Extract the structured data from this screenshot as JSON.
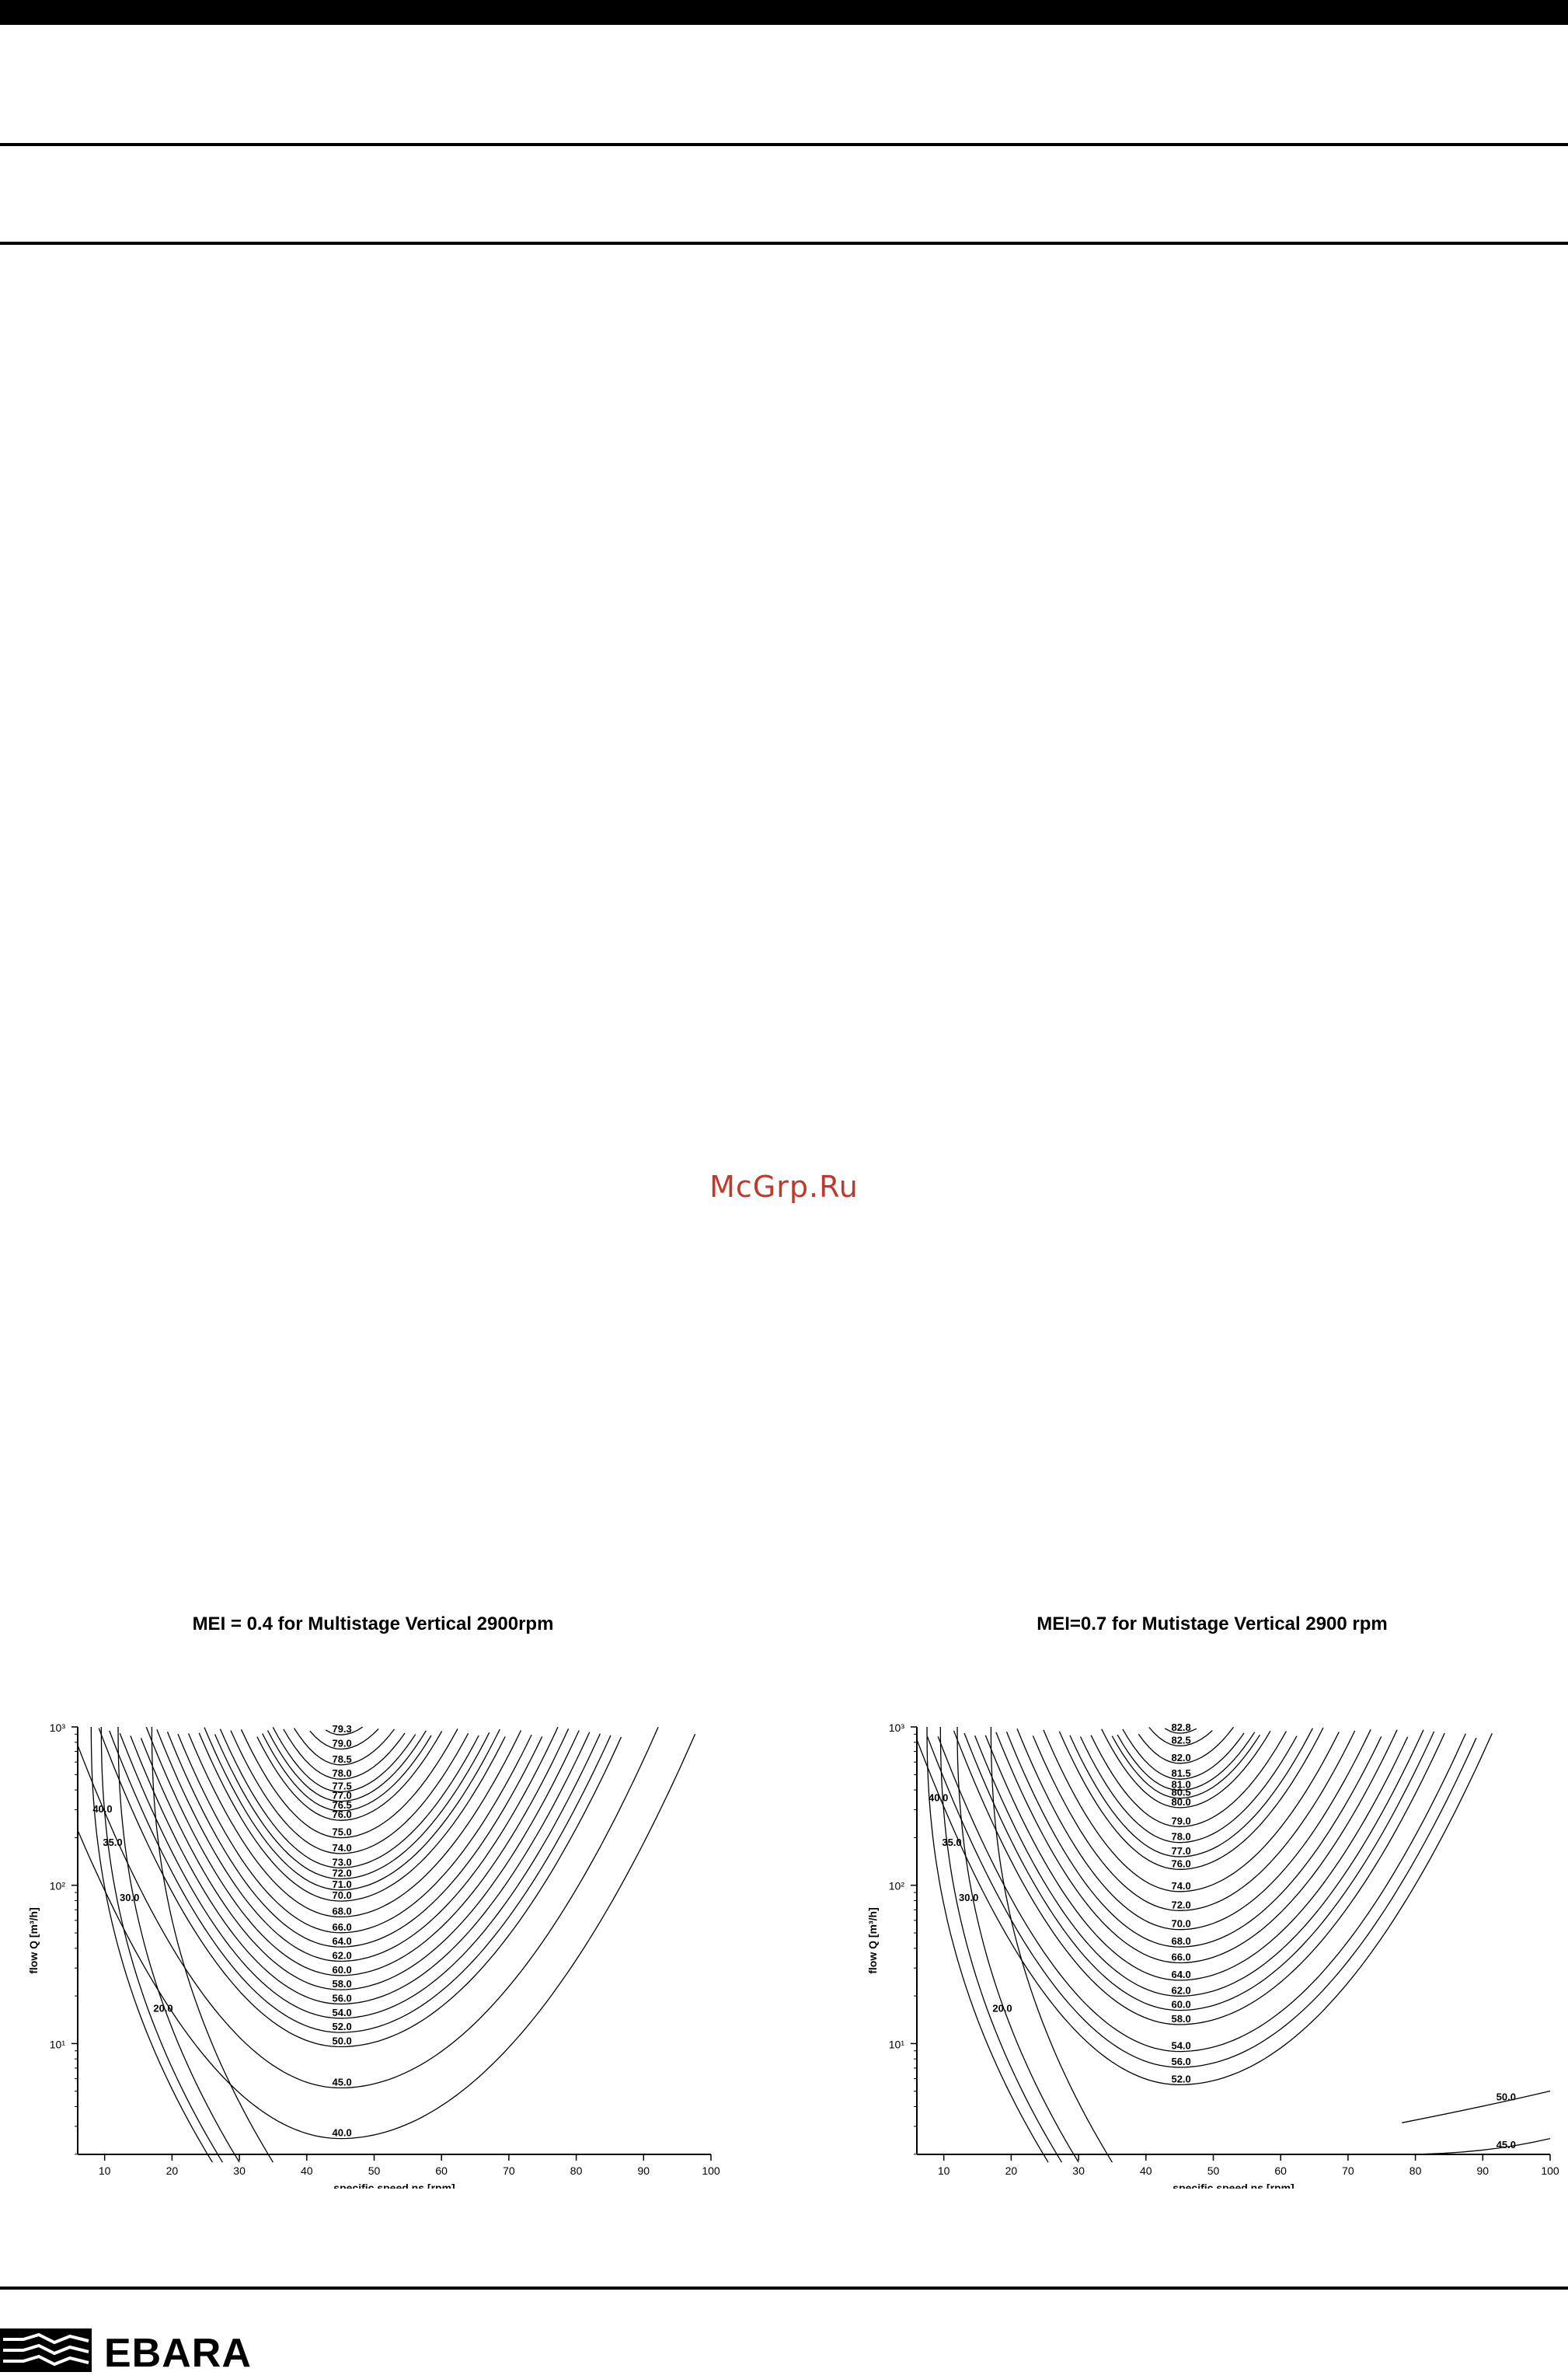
{
  "watermark": "McGrp.Ru",
  "brand": {
    "logo_text": "EBARA"
  },
  "chart_data": [
    {
      "type": "contour",
      "title": "MEI = 0.4 for Multistage Vertical 2900rpm",
      "xlabel": "specific speed ns [rpm]",
      "ylabel": "flow Q [m³/h]",
      "x_ticks": [
        10,
        20,
        30,
        40,
        50,
        60,
        70,
        80,
        90,
        100
      ],
      "y_ticks": [
        "10¹",
        "10²",
        "10³"
      ],
      "y_scale": "log",
      "xlim": [
        6,
        100
      ],
      "ylim_log10": [
        0.3,
        3.0
      ],
      "optimum_ns": 45,
      "levels": [
        {
          "value": "79.3",
          "logQ": 2.95
        },
        {
          "value": "79.0",
          "logQ": 2.86
        },
        {
          "value": "78.5",
          "logQ": 2.76
        },
        {
          "value": "78.0",
          "logQ": 2.67
        },
        {
          "value": "77.5",
          "logQ": 2.59
        },
        {
          "value": "77.0",
          "logQ": 2.53
        },
        {
          "value": "76.5",
          "logQ": 2.47
        },
        {
          "value": "76.0",
          "logQ": 2.41
        },
        {
          "value": "75.0",
          "logQ": 2.3
        },
        {
          "value": "74.0",
          "logQ": 2.2
        },
        {
          "value": "73.0",
          "logQ": 2.11
        },
        {
          "value": "72.0",
          "logQ": 2.04
        },
        {
          "value": "71.0",
          "logQ": 1.97
        },
        {
          "value": "70.0",
          "logQ": 1.9
        },
        {
          "value": "68.0",
          "logQ": 1.8
        },
        {
          "value": "66.0",
          "logQ": 1.7
        },
        {
          "value": "64.0",
          "logQ": 1.61
        },
        {
          "value": "62.0",
          "logQ": 1.52
        },
        {
          "value": "60.0",
          "logQ": 1.43
        },
        {
          "value": "58.0",
          "logQ": 1.34
        },
        {
          "value": "56.0",
          "logQ": 1.25
        },
        {
          "value": "54.0",
          "logQ": 1.16
        },
        {
          "value": "52.0",
          "logQ": 1.07
        },
        {
          "value": "50.0",
          "logQ": 0.98
        },
        {
          "value": "45.0",
          "logQ": 0.72
        },
        {
          "value": "40.0",
          "logQ": 0.4
        },
        {
          "value": "40.0",
          "logQ": 3.05,
          "side": "left",
          "ns": 8
        },
        {
          "value": "35.0",
          "logQ": 3.05,
          "side": "left",
          "ns": 9.5
        },
        {
          "value": "30.0",
          "logQ": 3.05,
          "side": "left",
          "ns": 12
        },
        {
          "value": "20.0",
          "logQ": 3.05,
          "side": "left",
          "ns": 17
        }
      ]
    },
    {
      "type": "contour",
      "title": "MEI=0.7 for Mutistage Vertical 2900 rpm",
      "xlabel": "specific speed ns [rpm]",
      "ylabel": "flow Q [m³/h]",
      "x_ticks": [
        10,
        20,
        30,
        40,
        50,
        60,
        70,
        80,
        90,
        100
      ],
      "y_ticks": [
        "10¹",
        "10²",
        "10³"
      ],
      "y_scale": "log",
      "xlim": [
        6,
        100
      ],
      "ylim_log10": [
        0.3,
        3.0
      ],
      "optimum_ns": 45,
      "levels": [
        {
          "value": "82.8",
          "logQ": 2.96
        },
        {
          "value": "82.5",
          "logQ": 2.88
        },
        {
          "value": "82.0",
          "logQ": 2.77
        },
        {
          "value": "81.5",
          "logQ": 2.67
        },
        {
          "value": "81.0",
          "logQ": 2.6
        },
        {
          "value": "80.5",
          "logQ": 2.55
        },
        {
          "value": "80.0",
          "logQ": 2.49
        },
        {
          "value": "79.0",
          "logQ": 2.37
        },
        {
          "value": "78.0",
          "logQ": 2.27
        },
        {
          "value": "77.0",
          "logQ": 2.18
        },
        {
          "value": "76.0",
          "logQ": 2.1
        },
        {
          "value": "74.0",
          "logQ": 1.96
        },
        {
          "value": "72.0",
          "logQ": 1.84
        },
        {
          "value": "70.0",
          "logQ": 1.72
        },
        {
          "value": "68.0",
          "logQ": 1.61
        },
        {
          "value": "66.0",
          "logQ": 1.51
        },
        {
          "value": "64.0",
          "logQ": 1.4
        },
        {
          "value": "62.0",
          "logQ": 1.3
        },
        {
          "value": "60.0",
          "logQ": 1.21
        },
        {
          "value": "58.0",
          "logQ": 1.12
        },
        {
          "value": "54.0",
          "logQ": 0.95
        },
        {
          "value": "56.0",
          "logQ": 0.85
        },
        {
          "value": "52.0",
          "logQ": 0.74
        },
        {
          "value": "50.0",
          "logQ": 0.62,
          "side": "right-low"
        },
        {
          "value": "45.0",
          "logQ": 0.32,
          "side": "right-low"
        },
        {
          "value": "40.0",
          "logQ": 3.05,
          "side": "left",
          "ns": 7.5
        },
        {
          "value": "35.0",
          "logQ": 3.05,
          "side": "left",
          "ns": 9.5
        },
        {
          "value": "30.0",
          "logQ": 3.05,
          "side": "left",
          "ns": 12
        },
        {
          "value": "20.0",
          "logQ": 3.05,
          "side": "left",
          "ns": 17
        }
      ]
    }
  ]
}
